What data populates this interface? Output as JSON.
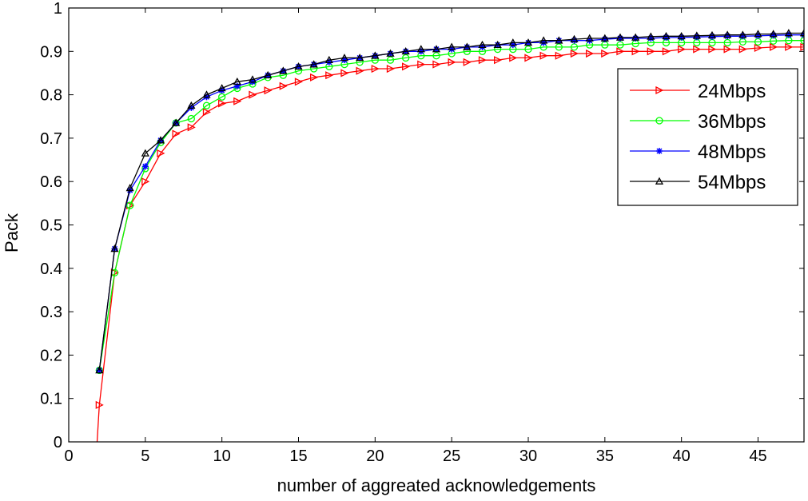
{
  "chart_data": {
    "type": "line",
    "title": "",
    "xlabel": "number of aggreated acknowledgements",
    "ylabel": "Pack",
    "xlim": [
      0,
      48
    ],
    "ylim": [
      0,
      1
    ],
    "xticks": [
      0,
      5,
      10,
      15,
      20,
      25,
      30,
      35,
      40,
      45
    ],
    "yticks": [
      0,
      0.1,
      0.2,
      0.3,
      0.4,
      0.5,
      0.6,
      0.7,
      0.8,
      0.9,
      1
    ],
    "ytick_labels": [
      "0",
      "0.1",
      "0.2",
      "0.3",
      "0.4",
      "0.5",
      "0.6",
      "0.7",
      "0.8",
      "0.9",
      "1"
    ],
    "grid": false,
    "legend_position": "top-right",
    "x": [
      2,
      3,
      4,
      5,
      6,
      7,
      8,
      9,
      10,
      11,
      12,
      13,
      14,
      15,
      16,
      17,
      18,
      19,
      20,
      21,
      22,
      23,
      24,
      25,
      26,
      27,
      28,
      29,
      30,
      31,
      32,
      33,
      34,
      35,
      36,
      37,
      38,
      39,
      40,
      41,
      42,
      43,
      44,
      45,
      46,
      47,
      48
    ],
    "series": [
      {
        "name": "24Mbps",
        "color": "#ff0000",
        "marker": "triangle-right",
        "values": [
          0.085,
          0.39,
          0.545,
          0.6,
          0.665,
          0.71,
          0.725,
          0.76,
          0.78,
          0.785,
          0.8,
          0.81,
          0.82,
          0.83,
          0.84,
          0.845,
          0.85,
          0.855,
          0.86,
          0.86,
          0.865,
          0.87,
          0.87,
          0.875,
          0.875,
          0.88,
          0.88,
          0.885,
          0.885,
          0.89,
          0.89,
          0.895,
          0.895,
          0.895,
          0.9,
          0.9,
          0.9,
          0.9,
          0.905,
          0.905,
          0.905,
          0.905,
          0.905,
          0.908,
          0.91,
          0.91,
          0.91
        ]
      },
      {
        "name": "36Mbps",
        "color": "#00ff00",
        "marker": "circle",
        "values": [
          0.165,
          0.39,
          0.545,
          0.63,
          0.69,
          0.735,
          0.745,
          0.775,
          0.795,
          0.815,
          0.825,
          0.84,
          0.845,
          0.855,
          0.86,
          0.865,
          0.87,
          0.875,
          0.88,
          0.88,
          0.885,
          0.89,
          0.89,
          0.895,
          0.9,
          0.9,
          0.905,
          0.905,
          0.905,
          0.91,
          0.91,
          0.91,
          0.915,
          0.915,
          0.915,
          0.918,
          0.92,
          0.92,
          0.92,
          0.92,
          0.92,
          0.92,
          0.922,
          0.922,
          0.924,
          0.925,
          0.925
        ]
      },
      {
        "name": "48Mbps",
        "color": "#0000ff",
        "marker": "star",
        "values": [
          0.165,
          0.445,
          0.58,
          0.635,
          0.695,
          0.735,
          0.77,
          0.795,
          0.81,
          0.82,
          0.83,
          0.845,
          0.855,
          0.865,
          0.87,
          0.875,
          0.88,
          0.885,
          0.89,
          0.895,
          0.9,
          0.9,
          0.905,
          0.905,
          0.91,
          0.91,
          0.915,
          0.915,
          0.92,
          0.92,
          0.925,
          0.925,
          0.925,
          0.928,
          0.93,
          0.93,
          0.93,
          0.932,
          0.932,
          0.933,
          0.934,
          0.935,
          0.935,
          0.936,
          0.937,
          0.938,
          0.938
        ]
      },
      {
        "name": "54Mbps",
        "color": "#000000",
        "marker": "triangle-up",
        "values": [
          0.165,
          0.445,
          0.585,
          0.665,
          0.695,
          0.735,
          0.775,
          0.8,
          0.815,
          0.83,
          0.835,
          0.845,
          0.855,
          0.865,
          0.87,
          0.88,
          0.885,
          0.885,
          0.89,
          0.895,
          0.9,
          0.905,
          0.905,
          0.91,
          0.91,
          0.915,
          0.915,
          0.92,
          0.92,
          0.925,
          0.925,
          0.928,
          0.93,
          0.93,
          0.932,
          0.932,
          0.934,
          0.935,
          0.935,
          0.936,
          0.937,
          0.938,
          0.938,
          0.94,
          0.94,
          0.942,
          0.942
        ]
      }
    ]
  }
}
